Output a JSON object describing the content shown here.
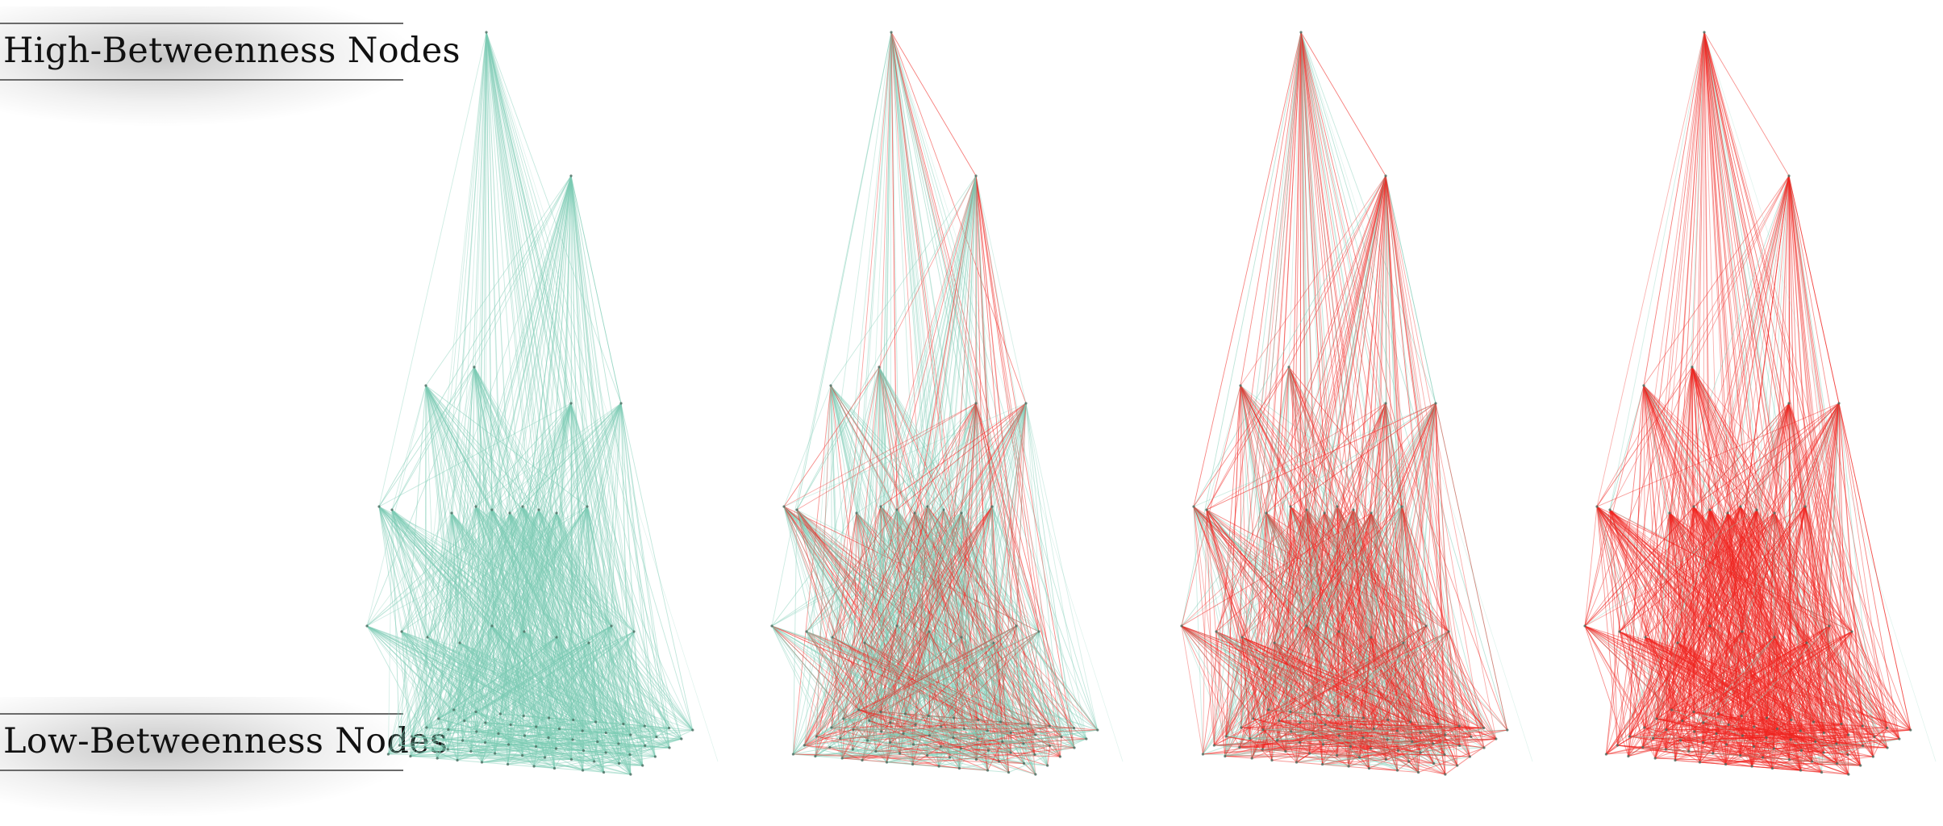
{
  "labels": {
    "top": "High-Betweenness Nodes",
    "bottom": "Low-Betweenness Nodes"
  },
  "colors": {
    "low": "#7ccbb4",
    "high": "#f0241f",
    "label_line": "#6a6a6a",
    "node": "#4a6b60"
  },
  "panels": [
    {
      "id": "panel-1",
      "red_fraction": 0.0
    },
    {
      "id": "panel-2",
      "red_fraction": 0.35
    },
    {
      "id": "panel-3",
      "red_fraction": 0.65
    },
    {
      "id": "panel-4",
      "red_fraction": 0.95
    }
  ]
}
